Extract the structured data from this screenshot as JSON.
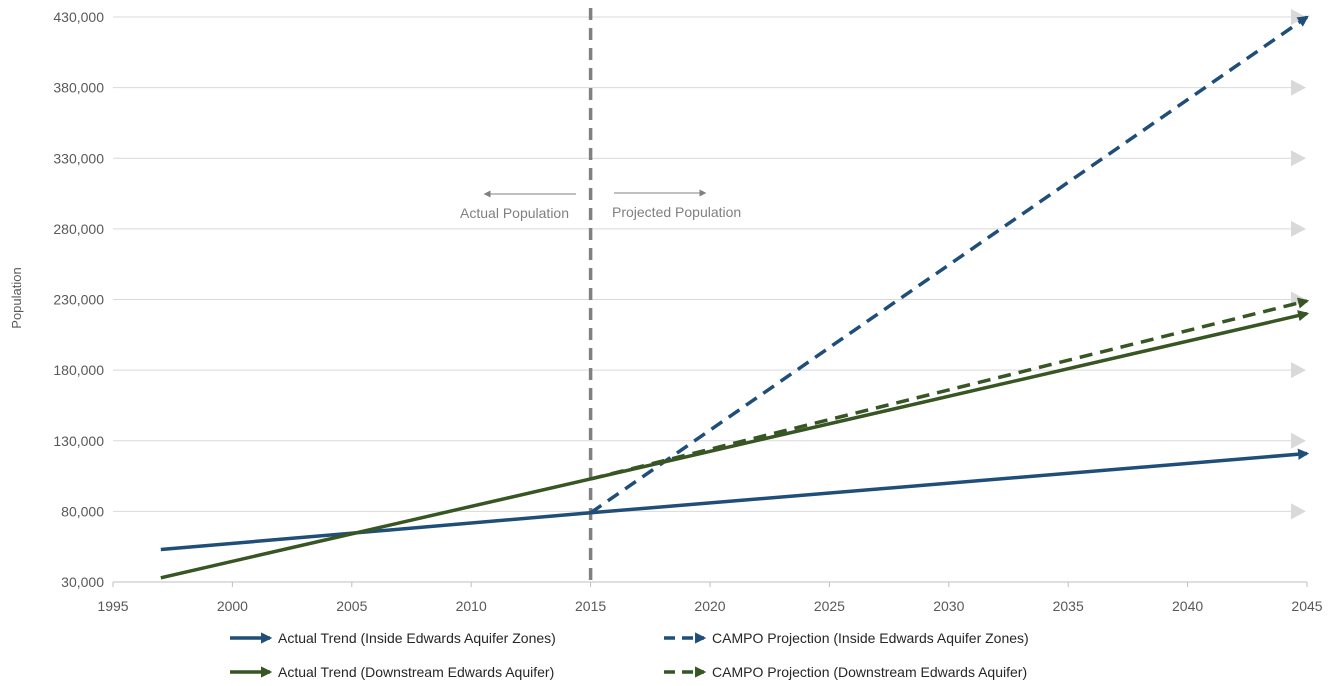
{
  "chart_data": {
    "type": "line",
    "title": "",
    "xlabel": "",
    "ylabel": "Population",
    "xlim": [
      1995,
      2045
    ],
    "ylim": [
      30000,
      430000
    ],
    "x_ticks": [
      1995,
      2000,
      2005,
      2010,
      2015,
      2020,
      2025,
      2030,
      2035,
      2040,
      2045
    ],
    "y_ticks": [
      30000,
      80000,
      130000,
      180000,
      230000,
      280000,
      330000,
      380000,
      430000
    ],
    "x_tick_labels": [
      "1995",
      "2000",
      "2005",
      "2010",
      "2015",
      "2020",
      "2025",
      "2030",
      "2035",
      "2040",
      "2045"
    ],
    "y_tick_labels": [
      "30,000",
      "80,000",
      "130,000",
      "180,000",
      "230,000",
      "280,000",
      "330,000",
      "380,000",
      "430,000"
    ],
    "grid": "horizontal",
    "legend_position": "bottom",
    "divider_x": 2015,
    "annotations": {
      "left": "Actual Population",
      "right": "Projected Population"
    },
    "series": [
      {
        "name": "Actual Trend (Inside Edwards Aquifer Zones)",
        "color": "#1f4e79",
        "style": "solid",
        "x": [
          1997,
          2015,
          2045
        ],
        "y": [
          53000,
          79000,
          121000
        ]
      },
      {
        "name": "CAMPO Projection (Inside Edwards Aquifer Zones)",
        "color": "#1f4e79",
        "style": "dashed",
        "x": [
          2015,
          2045
        ],
        "y": [
          79000,
          430000
        ]
      },
      {
        "name": "Actual Trend (Downstream Edwards Aquifer)",
        "color": "#375623",
        "style": "solid",
        "x": [
          1997,
          2015,
          2045
        ],
        "y": [
          33000,
          103000,
          220000
        ]
      },
      {
        "name": "CAMPO Projection (Downstream Edwards Aquifer)",
        "color": "#375623",
        "style": "dashed",
        "x": [
          2015,
          2045
        ],
        "y": [
          103000,
          229000
        ]
      }
    ]
  }
}
